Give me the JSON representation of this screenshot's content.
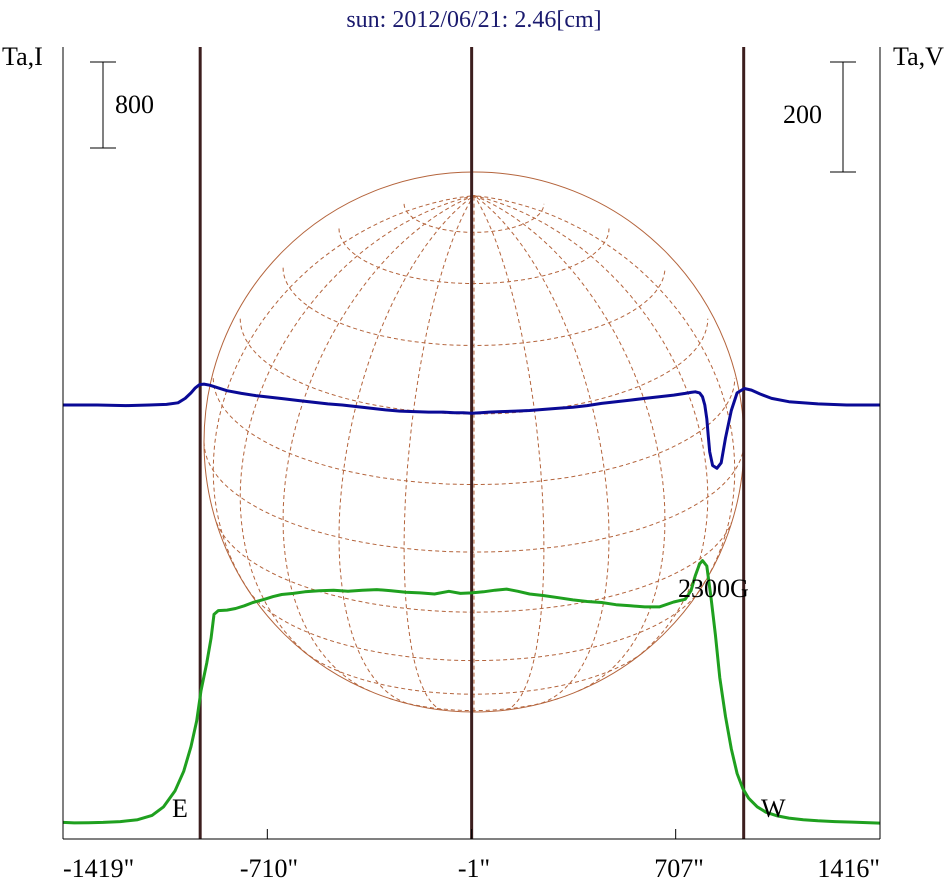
{
  "chart_data": {
    "type": "line",
    "title": "sun: 2012/06/21: 2.46[cm]",
    "left_axis_label": "Ta,I",
    "right_axis_label": "Ta,V",
    "left_scale_bar": "800",
    "right_scale_bar": "200",
    "east_label": "E",
    "west_label": "W",
    "annotation": "2300G",
    "x_tick_labels": [
      "-1419\"",
      "-710\"",
      "-1\"",
      "707\"",
      "1416\""
    ],
    "x_ticks": [
      -1419,
      -710,
      -1,
      707,
      1416
    ],
    "xlim": [
      -1419,
      1416
    ],
    "vertical_markers": [
      -943,
      -1,
      943
    ],
    "colors": {
      "intensity": "#1fa01f",
      "polarization": "#0a0a96",
      "grid": "#b4643c",
      "marker": "#3c1e1e"
    },
    "series": [
      {
        "key": "intensity",
        "x": [
          -1419,
          -1380,
          -1330,
          -1280,
          -1220,
          -1160,
          -1110,
          -1070,
          -1030,
          -1000,
          -975,
          -955,
          -940,
          -920,
          -905,
          -895,
          -880,
          -850,
          -820,
          -790,
          -760,
          -720,
          -690,
          -660,
          -620,
          -580,
          -530,
          -480,
          -430,
          -380,
          -330,
          -280,
          -230,
          -180,
          -130,
          -80,
          -40,
          -1,
          40,
          80,
          120,
          160,
          200,
          250,
          300,
          350,
          400,
          450,
          500,
          550,
          600,
          650,
          700,
          740,
          760,
          775,
          790,
          800,
          815,
          830,
          845,
          860,
          880,
          900,
          920,
          940,
          960,
          990,
          1020,
          1060,
          1100,
          1150,
          1200,
          1260,
          1320,
          1380,
          1416
        ],
        "y": [
          15,
          10,
          12,
          15,
          22,
          40,
          80,
          160,
          310,
          490,
          720,
          960,
          1240,
          1500,
          1730,
          1950,
          1985,
          1990,
          2005,
          2030,
          2060,
          2090,
          2115,
          2135,
          2145,
          2160,
          2170,
          2175,
          2165,
          2175,
          2180,
          2170,
          2155,
          2150,
          2140,
          2165,
          2145,
          2150,
          2160,
          2175,
          2185,
          2165,
          2140,
          2125,
          2105,
          2085,
          2070,
          2060,
          2040,
          2030,
          2020,
          2020,
          2065,
          2090,
          2170,
          2310,
          2420,
          2450,
          2400,
          2100,
          1760,
          1360,
          1000,
          700,
          470,
          330,
          240,
          160,
          110,
          75,
          55,
          40,
          30,
          22,
          18,
          12,
          8
        ]
      },
      {
        "key": "polarization",
        "x": [
          -1419,
          -1300,
          -1200,
          -1120,
          -1060,
          -1020,
          -995,
          -975,
          -960,
          -945,
          -930,
          -910,
          -880,
          -850,
          -800,
          -750,
          -700,
          -650,
          -600,
          -550,
          -500,
          -450,
          -400,
          -350,
          -300,
          -250,
          -200,
          -150,
          -100,
          -60,
          -30,
          -1,
          30,
          60,
          100,
          150,
          200,
          250,
          300,
          350,
          400,
          450,
          500,
          550,
          600,
          650,
          700,
          740,
          760,
          775,
          790,
          800,
          808,
          815,
          820,
          825,
          835,
          850,
          865,
          880,
          900,
          920,
          945,
          970,
          1000,
          1040,
          1100,
          1200,
          1300,
          1416
        ],
        "y": [
          0,
          0,
          -1,
          0,
          1,
          4,
          12,
          22,
          31,
          37,
          38,
          36,
          31,
          26,
          21,
          17,
          14,
          11,
          8,
          5,
          2,
          0,
          -3,
          -6,
          -9,
          -11,
          -12,
          -13,
          -13,
          -14,
          -14,
          -15,
          -14,
          -13,
          -12,
          -11,
          -10,
          -8,
          -6,
          -4,
          -1,
          3,
          6,
          9,
          12,
          15,
          18,
          21,
          23,
          24,
          22,
          15,
          0,
          -25,
          -55,
          -85,
          -110,
          -115,
          -105,
          -60,
          -10,
          22,
          30,
          27,
          20,
          12,
          6,
          2,
          0,
          0
        ]
      }
    ]
  }
}
